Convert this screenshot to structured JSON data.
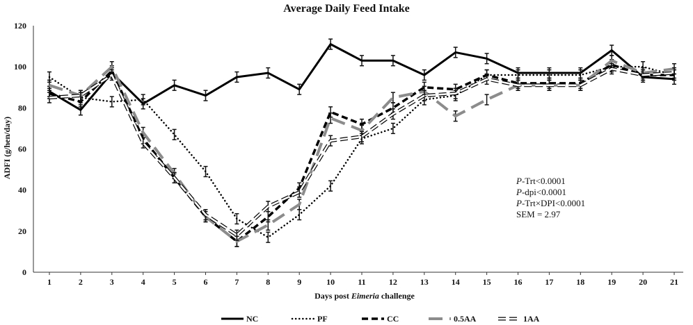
{
  "chart_data": {
    "type": "line",
    "title": "Average Daily Feed Intake",
    "xlabel_prefix": "Days post ",
    "xlabel_italic": "Eimeria",
    "xlabel_suffix": " challenge",
    "ylabel": "ADFI (g/hen/day)",
    "ylim": [
      0,
      120
    ],
    "yticks": [
      0,
      20,
      40,
      60,
      80,
      100,
      120
    ],
    "x": [
      1,
      2,
      3,
      4,
      5,
      6,
      7,
      8,
      9,
      10,
      11,
      12,
      13,
      14,
      15,
      16,
      17,
      18,
      19,
      20,
      21
    ],
    "series": [
      {
        "name": "NC",
        "color": "#000000",
        "style": "solid",
        "values": [
          88,
          79,
          97,
          82,
          91,
          86,
          95,
          97,
          89,
          111,
          103,
          103,
          96,
          107,
          104,
          97,
          97,
          97,
          108,
          95,
          94
        ],
        "errors": [
          2.5,
          2.5,
          2.5,
          2.5,
          2.5,
          2.5,
          2.5,
          2.5,
          2.5,
          2.5,
          2.5,
          2.5,
          2.5,
          2.5,
          2.5,
          2.5,
          2.5,
          2.5,
          2.5,
          2.5,
          2.5
        ]
      },
      {
        "name": "PF",
        "color": "#000000",
        "style": "dotted",
        "values": [
          95,
          85,
          83,
          84,
          67,
          49,
          26,
          17,
          28,
          42,
          65,
          70,
          84,
          86,
          96,
          96,
          96,
          96,
          100,
          100,
          96
        ],
        "errors": [
          2.5,
          2.5,
          2.5,
          2.5,
          2.5,
          2.5,
          2.5,
          2.5,
          2.5,
          2.5,
          2.5,
          2.5,
          2.5,
          2.5,
          2.5,
          2.5,
          2.5,
          2.5,
          2.5,
          2.5,
          2.5
        ]
      },
      {
        "name": "CC",
        "color": "#000000",
        "style": "dashed",
        "values": [
          87,
          83,
          98,
          65,
          46,
          27,
          15,
          27,
          41,
          78,
          72,
          80,
          90,
          89,
          96,
          92,
          92,
          92,
          101,
          96,
          96
        ],
        "errors": [
          2.5,
          2.5,
          2.5,
          2.5,
          2.5,
          2.5,
          2.5,
          2.5,
          2.5,
          2.5,
          2.5,
          2.5,
          2.5,
          2.5,
          2.5,
          2.5,
          2.5,
          2.5,
          2.5,
          2.5,
          2.5
        ]
      },
      {
        "name": "0.5AA",
        "color": "#8c8c8c",
        "style": "longdash",
        "values": [
          91,
          86,
          100,
          68,
          48,
          27,
          15,
          23,
          33,
          75,
          69,
          85,
          88,
          76,
          84,
          91,
          91,
          91,
          103,
          97,
          99
        ],
        "errors": [
          2.5,
          2.5,
          2.5,
          2.5,
          2.5,
          2.5,
          2.5,
          2.5,
          2.5,
          2.5,
          2.5,
          2.5,
          2.5,
          2.5,
          2.5,
          2.5,
          2.5,
          2.5,
          2.5,
          2.5,
          2.5
        ]
      },
      {
        "name": "1AA",
        "color": "#000000",
        "style": "hollowdash",
        "values": [
          85,
          86,
          96,
          63,
          46,
          28,
          18,
          32,
          39,
          64,
          66,
          77,
          86,
          87,
          94,
          91,
          91,
          91,
          99,
          96,
          97
        ],
        "errors": [
          2.5,
          2.5,
          2.5,
          2.5,
          2.5,
          2.5,
          2.5,
          2.5,
          2.5,
          2.5,
          2.5,
          2.5,
          2.5,
          2.5,
          2.5,
          2.5,
          2.5,
          2.5,
          2.5,
          2.5,
          2.5
        ]
      }
    ],
    "annotations": {
      "trt_prefix": "P",
      "trt_text": "-Trt<0.0001",
      "dpi_prefix": "P",
      "dpi_text": "-dpi<0.0001",
      "int_prefix": "P",
      "int_text": "-Trt×DPI<0.0001",
      "sem_text": "SEM = 2.97"
    },
    "legend_position": "bottom-center"
  }
}
